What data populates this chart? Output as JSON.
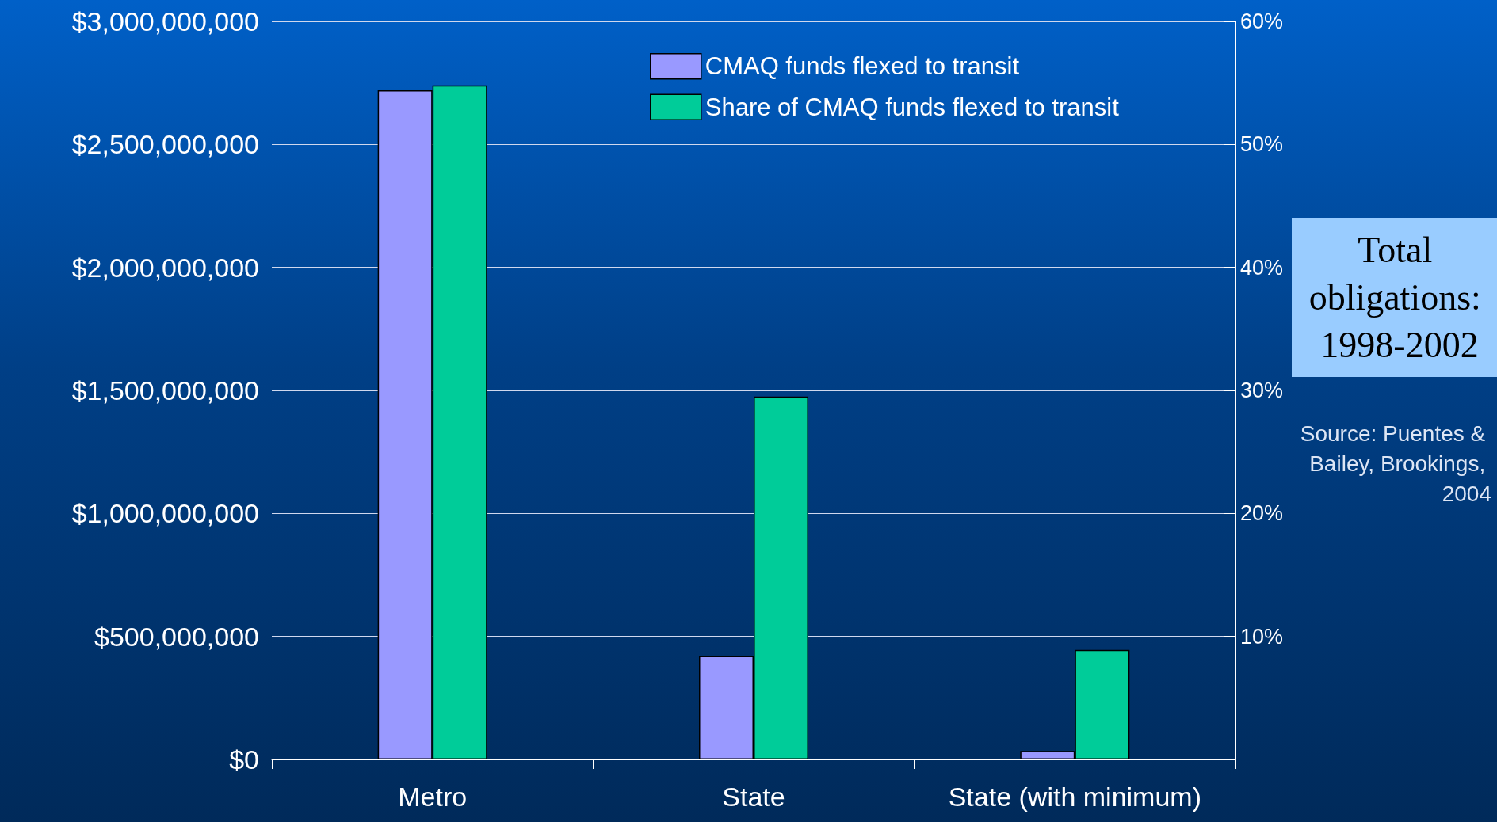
{
  "chart_data": {
    "type": "bar",
    "categories": [
      "Metro",
      "State",
      "State (with minimum)"
    ],
    "series": [
      {
        "name": "CMAQ funds flexed to transit",
        "color": "#9999ff",
        "values": [
          2720000000,
          420000000,
          35000000
        ]
      },
      {
        "name": "Share of CMAQ funds flexed to transit",
        "color": "#00cc99",
        "values": [
          54.8,
          29.5,
          8.9
        ],
        "axis": "y2"
      }
    ],
    "ylim": [
      0,
      3000000000
    ],
    "yticks": [
      {
        "value": 0,
        "label": "$0"
      },
      {
        "value": 500000000,
        "label": "$500,000,000"
      },
      {
        "value": 1000000000,
        "label": "$1,000,000,000"
      },
      {
        "value": 1500000000,
        "label": "$1,500,000,000"
      },
      {
        "value": 2000000000,
        "label": "$2,000,000,000"
      },
      {
        "value": 2500000000,
        "label": "$2,500,000,000"
      },
      {
        "value": 3000000000,
        "label": "$3,000,000,000"
      }
    ],
    "y2lim": [
      0,
      60
    ],
    "y2ticks": [
      {
        "value": 10,
        "label": "10%"
      },
      {
        "value": 20,
        "label": "20%"
      },
      {
        "value": 30,
        "label": "30%"
      },
      {
        "value": 40,
        "label": "40%"
      },
      {
        "value": 50,
        "label": "50%"
      },
      {
        "value": 60,
        "label": "60%"
      }
    ],
    "grid": "y",
    "legend": "top right",
    "annotations": [
      "Total obligations: 1998-2002",
      "Source: Puentes & Bailey, Brookings, 2004"
    ]
  }
}
